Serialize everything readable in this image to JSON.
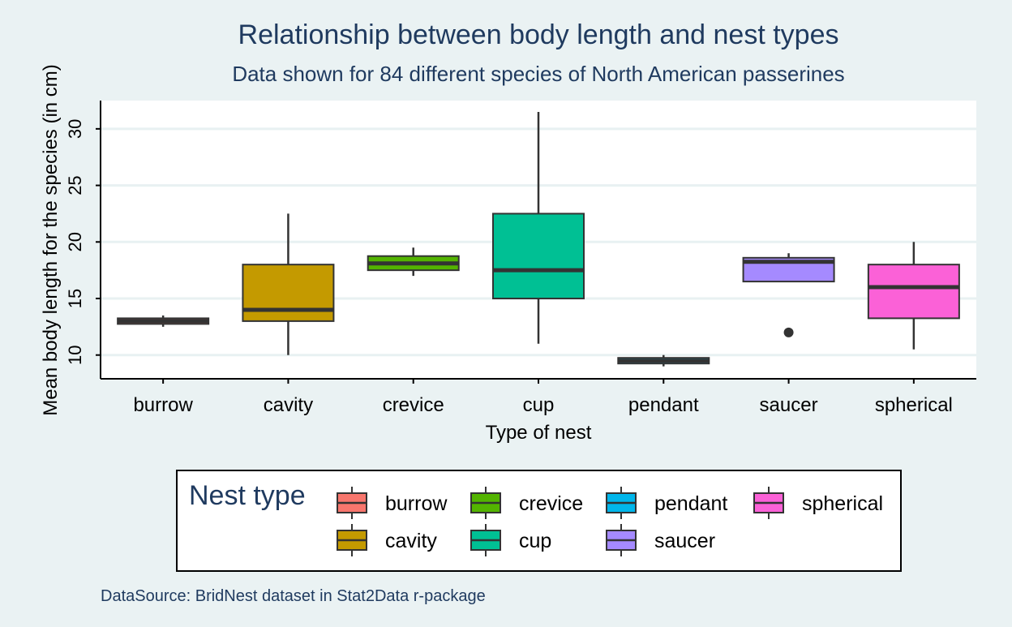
{
  "chart_data": {
    "type": "boxplot",
    "title": "Relationship between body length and nest types",
    "subtitle": "Data shown for 84 different species of North American passerines",
    "xlabel": "Type of nest",
    "ylabel": "Mean body length for the species (in cm)",
    "ylim": [
      7.9,
      32.5
    ],
    "yticks": [
      10,
      15,
      20,
      25,
      30
    ],
    "grid": true,
    "categories": [
      "burrow",
      "cavity",
      "crevice",
      "cup",
      "pendant",
      "saucer",
      "spherical"
    ],
    "boxes": [
      {
        "name": "burrow",
        "color": "#f8766d",
        "min": 12.5,
        "q1": 12.75,
        "median": 13.0,
        "q3": 13.25,
        "max": 13.5,
        "outliers": []
      },
      {
        "name": "cavity",
        "color": "#c49a00",
        "min": 10.0,
        "q1": 13.0,
        "median": 14.0,
        "q3": 18.0,
        "max": 22.5,
        "outliers": []
      },
      {
        "name": "crevice",
        "color": "#53b400",
        "min": 17.0,
        "q1": 17.5,
        "median": 18.1,
        "q3": 18.75,
        "max": 19.5,
        "outliers": []
      },
      {
        "name": "cup",
        "color": "#00c094",
        "min": 11.0,
        "q1": 15.0,
        "median": 17.5,
        "q3": 22.5,
        "max": 31.5,
        "outliers": []
      },
      {
        "name": "pendant",
        "color": "#00b6eb",
        "min": 9.0,
        "q1": 9.25,
        "median": 9.5,
        "q3": 9.75,
        "max": 10.0,
        "outliers": []
      },
      {
        "name": "saucer",
        "color": "#a58aff",
        "min": 16.5,
        "q1": 16.5,
        "median": 18.25,
        "q3": 18.6,
        "max": 19.0,
        "outliers": [
          12.0
        ]
      },
      {
        "name": "spherical",
        "color": "#fb61d7",
        "min": 10.5,
        "q1": 13.25,
        "median": 16.0,
        "q3": 18.0,
        "max": 20.0,
        "outliers": []
      }
    ],
    "legend": {
      "title": "Nest type",
      "position": "bottom",
      "items": [
        "burrow",
        "cavity",
        "crevice",
        "cup",
        "pendant",
        "saucer",
        "spherical"
      ]
    },
    "caption": "DataSource: BridNest dataset in Stat2Data r-package"
  }
}
